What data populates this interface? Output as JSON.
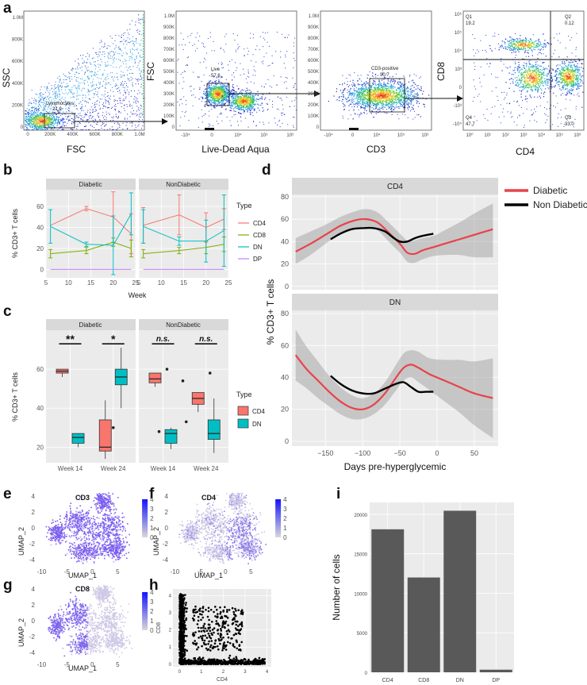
{
  "panel_labels": {
    "a": "a",
    "b": "b",
    "c": "c",
    "d": "d",
    "e": "e",
    "f": "f",
    "g": "g",
    "h": "h",
    "i": "i"
  },
  "colors": {
    "CD4": "#F8766D",
    "CD8": "#7CAE00",
    "DN": "#00BFC4",
    "DP": "#C77CFF",
    "diabetic_line": "#E8434B",
    "nondiabetic_line": "#000000",
    "bar": "#595959",
    "panel_bg": "#EBEBEB",
    "strip_bg": "#D9D9D9"
  },
  "chart_data": [
    {
      "id": "a",
      "type": "scatter",
      "title": "Flow cytometry gating",
      "plots": [
        {
          "xlabel": "FSC",
          "ylabel": "SSC",
          "x_ticks": [
            "0",
            "200K",
            "400K",
            "600K",
            "800K",
            "1.0M"
          ],
          "y_ticks": [
            "0",
            "200K",
            "400K",
            "600K",
            "800K",
            "1.0M"
          ],
          "gate_name": "Lymphocytes",
          "gate_value": "21.9"
        },
        {
          "xlabel": "Live-Dead Aqua",
          "ylabel": "FSC",
          "x_ticks": [
            "-10⁴",
            "0",
            "10⁴",
            "10⁵",
            "10⁶"
          ],
          "y_ticks": [
            "0",
            "100K",
            "200K",
            "300K",
            "400K",
            "500K",
            "600K",
            "700K",
            "800K",
            "900K",
            "1.0M"
          ],
          "gate_name": "Live",
          "gate_value": "57.6"
        },
        {
          "xlabel": "CD3",
          "ylabel": "",
          "x_ticks": [
            "-10⁴",
            "0",
            "10⁴",
            "10⁵",
            "10⁶"
          ],
          "y_ticks": [
            "0",
            "100K",
            "200K",
            "300K",
            "400K",
            "500K",
            "600K",
            "700K",
            "800K",
            "900K",
            "1.0M"
          ],
          "gate_name": "CD3-positive",
          "gate_value": "90.7"
        },
        {
          "xlabel": "CD4",
          "ylabel": "CD8",
          "x_ticks": [
            "10⁰",
            "10¹",
            "10²",
            "10³",
            "10⁴",
            "10⁵",
            "10⁶"
          ],
          "y_ticks": [
            "-10⁴",
            "-10³",
            "0",
            "10³",
            "10⁴",
            "10⁵",
            "10⁶"
          ],
          "quadrants": [
            {
              "name": "Q1",
              "value": "19.2"
            },
            {
              "name": "Q2",
              "value": "0.12"
            },
            {
              "name": "Q3",
              "value": "33.0"
            },
            {
              "name": "Q4",
              "value": "47.7"
            }
          ]
        }
      ]
    },
    {
      "id": "b",
      "type": "line",
      "facets": [
        "Diabetic",
        "NonDiabetic"
      ],
      "x": [
        6,
        14,
        20,
        24
      ],
      "x_ticks": [
        "5",
        "10",
        "15",
        "20",
        "25"
      ],
      "xlim": [
        5,
        25
      ],
      "y_ticks": [
        "0",
        "20",
        "40",
        "60"
      ],
      "ylim": [
        -8,
        76
      ],
      "xlabel": "Week",
      "ylabel": "% CD3+ T cells",
      "legend_title": "Type",
      "series": [
        {
          "facet": "Diabetic",
          "name": "CD4",
          "values": [
            42,
            58,
            50,
            34
          ],
          "err": [
            0,
            2,
            24,
            19
          ]
        },
        {
          "facet": "Diabetic",
          "name": "CD8",
          "values": [
            15,
            18,
            26,
            20
          ],
          "err": [
            4,
            3,
            4,
            8
          ]
        },
        {
          "facet": "Diabetic",
          "name": "DN",
          "values": [
            41,
            24,
            23,
            53
          ],
          "err": [
            16,
            2,
            28,
            20
          ]
        },
        {
          "facet": "Diabetic",
          "name": "DP",
          "values": [
            0,
            0,
            0,
            0
          ],
          "err": [
            0,
            0,
            0,
            0
          ]
        },
        {
          "facet": "NonDiabetic",
          "name": "CD4",
          "values": [
            42,
            52,
            40,
            48
          ],
          "err": [
            17,
            19,
            14,
            10
          ]
        },
        {
          "facet": "NonDiabetic",
          "name": "CD8",
          "values": [
            15,
            18,
            21,
            24
          ],
          "err": [
            4,
            3,
            6,
            7
          ]
        },
        {
          "facet": "NonDiabetic",
          "name": "DN",
          "values": [
            41,
            27,
            27,
            37
          ],
          "err": [
            16,
            4,
            20,
            34
          ]
        },
        {
          "facet": "NonDiabetic",
          "name": "DP",
          "values": [
            0,
            0,
            0,
            0
          ],
          "err": [
            0,
            0,
            0,
            0
          ]
        }
      ]
    },
    {
      "id": "c",
      "type": "box",
      "facets": [
        "Diabetic",
        "NonDiabetic"
      ],
      "categories": [
        "Week 14",
        "Week 24"
      ],
      "y_ticks": [
        "20",
        "40",
        "60"
      ],
      "ylim": [
        12,
        80
      ],
      "ylabel": "% CD3+ T cells",
      "legend_title": "Type",
      "legend_items": [
        "CD4",
        "DN"
      ],
      "boxes": [
        {
          "facet": "Diabetic",
          "category": "Week 14",
          "group": "CD4",
          "min": 56,
          "q1": 58,
          "median": 59,
          "q3": 60,
          "max": 60,
          "outliers": []
        },
        {
          "facet": "Diabetic",
          "category": "Week 14",
          "group": "DN",
          "min": 20,
          "q1": 22,
          "median": 25,
          "q3": 27,
          "max": 27,
          "outliers": []
        },
        {
          "facet": "Diabetic",
          "category": "Week 24",
          "group": "CD4",
          "min": 14,
          "q1": 18,
          "median": 20,
          "q3": 34,
          "max": 44,
          "outliers": []
        },
        {
          "facet": "Diabetic",
          "category": "Week 24",
          "group": "DN",
          "min": 40,
          "q1": 52,
          "median": 56,
          "q3": 60,
          "max": 71,
          "outliers": [
            30
          ]
        },
        {
          "facet": "NonDiabetic",
          "category": "Week 14",
          "group": "CD4",
          "min": 51,
          "q1": 53,
          "median": 55,
          "q3": 58,
          "max": 58,
          "outliers": [
            60
          ]
        },
        {
          "facet": "NonDiabetic",
          "category": "Week 14",
          "group": "DN",
          "min": 19,
          "q1": 22,
          "median": 27,
          "q3": 29,
          "max": 30,
          "outliers": [
            28,
            54
          ]
        },
        {
          "facet": "NonDiabetic",
          "category": "Week 24",
          "group": "CD4",
          "min": 38,
          "q1": 42,
          "median": 45,
          "q3": 48,
          "max": 48,
          "outliers": [
            58,
            33
          ]
        },
        {
          "facet": "NonDiabetic",
          "category": "Week 24",
          "group": "DN",
          "min": 17,
          "q1": 24,
          "median": 27,
          "q3": 34,
          "max": 45,
          "outliers": []
        }
      ],
      "annotations": [
        {
          "facet": "Diabetic",
          "category": "Week 14",
          "label": "**"
        },
        {
          "facet": "Diabetic",
          "category": "Week 24",
          "label": "*"
        },
        {
          "facet": "NonDiabetic",
          "category": "Week 14",
          "label": "n.s."
        },
        {
          "facet": "NonDiabetic",
          "category": "Week 24",
          "label": "n.s."
        }
      ]
    },
    {
      "id": "d",
      "type": "line",
      "facets": [
        "CD4",
        "DN"
      ],
      "xlim": [
        -195,
        82
      ],
      "x_ticks": [
        "-150",
        "-100",
        "-50",
        "0",
        "50"
      ],
      "ylim": [
        -3,
        82
      ],
      "y_ticks": [
        "0",
        "20",
        "40",
        "60",
        "80"
      ],
      "xlabel": "Days pre-hyperglycemic",
      "ylabel": "% CD3+ T cells",
      "legend_items": [
        "Diabetic",
        "Non Diabetic"
      ],
      "series": [
        {
          "facet": "CD4",
          "name": "Diabetic",
          "x": [
            -190,
            -170,
            -150,
            -130,
            -110,
            -95,
            -80,
            -65,
            -50,
            -40,
            -30,
            -20,
            -5,
            10,
            30,
            50,
            75
          ],
          "y": [
            31,
            38,
            46,
            54,
            59,
            60,
            57,
            48,
            38,
            30,
            29,
            32,
            35,
            38,
            42,
            46,
            51
          ],
          "lo": [
            20,
            28,
            38,
            47,
            52,
            53,
            50,
            40,
            30,
            22,
            21,
            24,
            27,
            28,
            28,
            26,
            26
          ],
          "hi": [
            43,
            49,
            55,
            62,
            67,
            69,
            66,
            57,
            47,
            41,
            41,
            43,
            45,
            50,
            57,
            65,
            74
          ]
        },
        {
          "facet": "CD4",
          "name": "Non Diabetic",
          "x": [
            -143,
            -130,
            -115,
            -100,
            -85,
            -70,
            -60,
            -50,
            -40,
            -30,
            -20,
            -5
          ],
          "y": [
            42,
            47,
            51,
            52,
            52,
            49,
            44,
            40,
            40,
            43,
            45,
            47
          ]
        },
        {
          "facet": "DN",
          "name": "Diabetic",
          "x": [
            -190,
            -175,
            -160,
            -145,
            -130,
            -115,
            -100,
            -85,
            -70,
            -55,
            -45,
            -35,
            -25,
            -10,
            10,
            30,
            50,
            75
          ],
          "y": [
            54,
            45,
            38,
            31,
            25,
            21,
            20,
            23,
            30,
            40,
            46,
            48,
            46,
            42,
            38,
            34,
            30,
            27
          ],
          "lo": [
            38,
            33,
            27,
            22,
            17,
            14,
            14,
            17,
            23,
            32,
            38,
            40,
            37,
            32,
            25,
            18,
            10,
            2
          ],
          "hi": [
            70,
            59,
            50,
            41,
            34,
            29,
            27,
            30,
            37,
            48,
            55,
            57,
            56,
            52,
            51,
            51,
            50,
            52
          ]
        },
        {
          "facet": "DN",
          "name": "Non Diabetic",
          "x": [
            -143,
            -130,
            -115,
            -100,
            -85,
            -70,
            -55,
            -45,
            -35,
            -25,
            -15,
            -5
          ],
          "y": [
            41,
            36,
            32,
            30,
            30,
            33,
            36,
            37,
            34,
            31,
            31,
            31
          ]
        }
      ]
    },
    {
      "id": "e",
      "type": "scatter",
      "title": "CD3",
      "xlabel": "UMAP_1",
      "ylabel": "UMAP_2",
      "x_ticks": [
        "-10",
        "-5",
        "0",
        "5"
      ],
      "y_ticks": [
        "-4",
        "-2",
        "0",
        "2",
        "4"
      ],
      "colorbar_ticks": [
        "0",
        "1",
        "2",
        "3",
        "4"
      ]
    },
    {
      "id": "f",
      "type": "scatter",
      "title": "CD4",
      "xlabel": "UMAP_1",
      "ylabel": "UMAP_2",
      "x_ticks": [
        "-10",
        "-5",
        "0",
        "5"
      ],
      "y_ticks": [
        "-4",
        "-2",
        "0",
        "2",
        "4"
      ],
      "colorbar_ticks": [
        "0",
        "1",
        "2",
        "3",
        "4"
      ]
    },
    {
      "id": "g",
      "type": "scatter",
      "title": "CD8",
      "xlabel": "UMAP_1",
      "ylabel": "UMAP_2",
      "x_ticks": [
        "-10",
        "-5",
        "0",
        "5"
      ],
      "y_ticks": [
        "-4",
        "-2",
        "0",
        "2",
        "4"
      ],
      "colorbar_ticks": [
        "0",
        "1",
        "2",
        "3",
        "4"
      ]
    },
    {
      "id": "h",
      "type": "scatter",
      "xlabel": "CD4",
      "ylabel": "CD8",
      "x_ticks": [
        "0",
        "1",
        "2",
        "3",
        "4"
      ],
      "y_ticks": [
        "0",
        "1",
        "2",
        "3",
        "4"
      ],
      "xlim": [
        -0.3,
        4.2
      ],
      "ylim": [
        -0.15,
        4.4
      ]
    },
    {
      "id": "i",
      "type": "bar",
      "categories": [
        "CD4",
        "CD8",
        "DN",
        "DP"
      ],
      "values": [
        18100,
        12000,
        20450,
        330
      ],
      "ylim": [
        0,
        21500
      ],
      "y_ticks": [
        "0",
        "5000",
        "10000",
        "15000",
        "20000"
      ],
      "xlabel": "",
      "ylabel": "Number of cells"
    }
  ]
}
